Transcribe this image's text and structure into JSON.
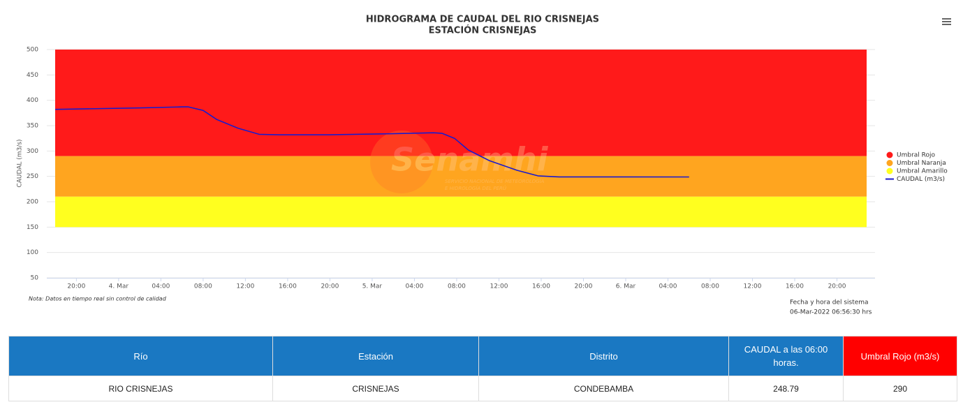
{
  "chart_data": {
    "type": "line",
    "title": "HIDROGRAMA DE CAUDAL DEL RIO CRISNEJAS",
    "subtitle": "ESTACIÓN CRISNEJAS",
    "y_label": "CAUDAL (m3/s)",
    "note": "Nota: Datos en tiempo real sin control de calidad",
    "system_time_label": "Fecha y hora del sistema",
    "system_time": "06-Mar-2022 06:56:30 hrs",
    "watermark": {
      "name": "Senamhi",
      "tagline": [
        "SERVICIO NACIONAL DE METEOROLOGÍA",
        "E HIDROLOGÍA DEL PERÚ"
      ]
    },
    "xlim": [
      17.2,
      95.6
    ],
    "xticks": [
      {
        "value": 20,
        "label": "20:00"
      },
      {
        "value": 24,
        "label": "4. Mar"
      },
      {
        "value": 28,
        "label": "04:00"
      },
      {
        "value": 32,
        "label": "08:00"
      },
      {
        "value": 36,
        "label": "12:00"
      },
      {
        "value": 40,
        "label": "16:00"
      },
      {
        "value": 44,
        "label": "20:00"
      },
      {
        "value": 48,
        "label": "5. Mar"
      },
      {
        "value": 52,
        "label": "04:00"
      },
      {
        "value": 56,
        "label": "08:00"
      },
      {
        "value": 60,
        "label": "12:00"
      },
      {
        "value": 64,
        "label": "16:00"
      },
      {
        "value": 68,
        "label": "20:00"
      },
      {
        "value": 72,
        "label": "6. Mar"
      },
      {
        "value": 76,
        "label": "04:00"
      },
      {
        "value": 80,
        "label": "08:00"
      },
      {
        "value": 84,
        "label": "12:00"
      },
      {
        "value": 88,
        "label": "16:00"
      },
      {
        "value": 92,
        "label": "20:00"
      }
    ],
    "ylim": [
      50,
      500
    ],
    "yticks": [
      50,
      100,
      150,
      200,
      250,
      300,
      350,
      400,
      450,
      500
    ],
    "grid": true,
    "legend": "right",
    "bands": [
      {
        "name": "Umbral Rojo",
        "color": "#ff1a1a",
        "from": 290,
        "to": 500
      },
      {
        "name": "Umbral Naranja",
        "color": "#ffa51f",
        "from": 210,
        "to": 290
      },
      {
        "name": "Umbral Amarillo",
        "color": "#ffff1f",
        "from": 150,
        "to": 210
      }
    ],
    "series": [
      {
        "name": "CAUDAL (m3/s)",
        "color": "#1a1acc",
        "x": [
          18,
          26,
          30,
          30.6,
          32,
          33.3,
          35.3,
          37.3,
          39.2,
          43.9,
          49.8,
          53.8,
          54.6,
          55.8,
          57.1,
          59.1,
          61.7,
          63.7,
          65.7,
          78
        ],
        "values": [
          382,
          385,
          387,
          387,
          380,
          362,
          345,
          333,
          332,
          332,
          334,
          336,
          335,
          325,
          302,
          281,
          262,
          251,
          249,
          248.79
        ]
      }
    ]
  },
  "table": {
    "headers": [
      "Río",
      "Estación",
      "Distrito",
      "CAUDAL a las 06:00 horas.",
      "Umbral Rojo (m3/s)"
    ],
    "rows": [
      [
        "RIO CRISNEJAS",
        "CRISNEJAS",
        "CONDEBAMBA",
        "248.79",
        "290"
      ]
    ]
  }
}
